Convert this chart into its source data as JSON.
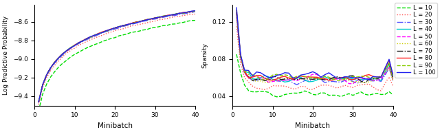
{
  "title": "",
  "left_ylabel": "Log Predictive Probability",
  "right_ylabel": "Sparsity",
  "xlabel": "Minibatch",
  "xlim": [
    0,
    40
  ],
  "left_ylim": [
    -9.5,
    -8.42
  ],
  "right_ylim": [
    0.03,
    0.138
  ],
  "left_yticks": [
    -9.4,
    -9.2,
    -9.0,
    -8.8,
    -8.6
  ],
  "right_yticks": [
    0.04,
    0.08,
    0.12
  ],
  "xticks": [
    0,
    10,
    20,
    30,
    40
  ],
  "legend_labels": [
    "L = 10",
    "L = 20",
    "L = 30",
    "L = 40",
    "L = 50",
    "L = 60",
    "L = 70",
    "L = 80",
    "L = 90",
    "L = 100"
  ],
  "line_colors": [
    "#00dd00",
    "#ff5555",
    "#5555ff",
    "#00cccc",
    "#ff00ff",
    "#cccc00",
    "#222222",
    "#ff2222",
    "#88cc00",
    "#2222ee"
  ],
  "line_styles": [
    "--",
    ":",
    "-.",
    "-",
    "--",
    ":",
    "-.",
    "-",
    "--",
    "-"
  ],
  "line_widths": [
    1.0,
    1.0,
    1.0,
    1.0,
    1.0,
    1.0,
    1.0,
    1.0,
    1.0,
    1.0
  ],
  "n_points": 40
}
